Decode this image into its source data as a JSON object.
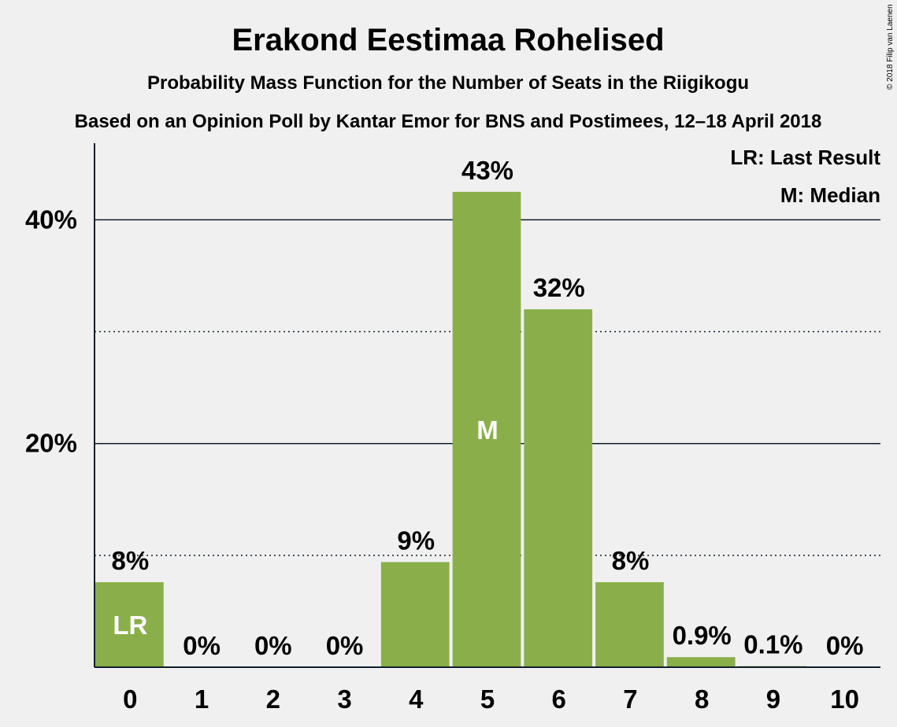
{
  "chart_data": {
    "type": "bar",
    "title": "Erakond Eestimaa Rohelised",
    "subtitle": "Probability Mass Function for the Number of Seats in the Riigikogu",
    "subtitle2": "Based on an Opinion Poll by Kantar Emor for BNS and Postimees, 12–18 April 2018",
    "categories": [
      "0",
      "1",
      "2",
      "3",
      "4",
      "5",
      "6",
      "7",
      "8",
      "9",
      "10"
    ],
    "values": [
      7.6,
      0,
      0,
      0,
      9.4,
      42.5,
      32.0,
      7.6,
      0.9,
      0.1,
      0
    ],
    "value_labels": [
      "8%",
      "0%",
      "0%",
      "0%",
      "9%",
      "43%",
      "32%",
      "8%",
      "0.9%",
      "0.1%",
      "0%"
    ],
    "bar_markers": [
      {
        "index": 0,
        "text": "LR"
      },
      {
        "index": 5,
        "text": "M"
      }
    ],
    "ylim": [
      0,
      46.5
    ],
    "y_ticks": [
      {
        "value": 20,
        "label": "20%"
      },
      {
        "value": 40,
        "label": "40%"
      }
    ],
    "minor_gridlines": [
      10,
      30
    ],
    "legend": [
      "LR: Last Result",
      "M: Median"
    ],
    "legend_position": "top-right",
    "bar_color": "#8aaf4a",
    "copyright": "© 2018 Filip van Laenen"
  }
}
